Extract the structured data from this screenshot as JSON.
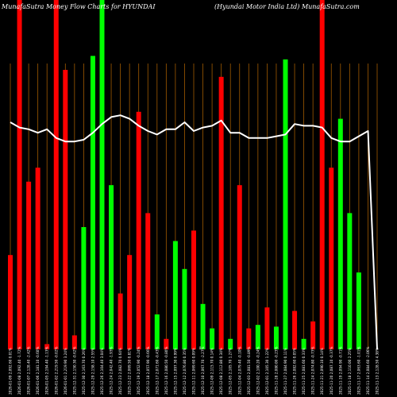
{
  "header": {
    "left": "MunafaSutra  Money Flow  Charts for HYUNDAI",
    "right": "(Hyundai  Motor India  Ltd) MunafaSutra.com"
  },
  "zero_label": "0",
  "colors": {
    "up": "#00ff00",
    "down": "#ff0000",
    "line": "#ffffff",
    "grid": "#a05a00",
    "background": "#000000"
  },
  "chart_data": {
    "type": "bar",
    "title": "MunafaSutra  Money Flow  Charts for HYUNDAI",
    "subtitle": "(Hyundai  Motor India  Ltd) MunafaSutra.com",
    "ylim": [
      0,
      100
    ],
    "grid": "vertical",
    "categories": [
      "2026-01-09 2,092.60 0.01%",
      "2026-01-08 2,092.40 -1.72%",
      "2026-01-07 2,128.40 -2.42%",
      "2026-01-06 2,181.10 -0.60%",
      "2026-01-05 2,194.40 -1.13%",
      "2026-01-02 2,219.50 -0.02%",
      "2026-01-01 2,219.90 3.24%",
      "2025-12-31 2,150.30 -0.62%",
      "2025-12-30 2,163.70 0.26%",
      "2025-12-29 2,158.10 2.55%",
      "2025-12-26 2,104.40 3.04%",
      "2025-12-24 2,042.40 -1.93%",
      "2025-12-23 2,082.70 0.64%",
      "2025-12-22 2,069.50 0.81%",
      "2025-12-19 2,052.90 -0.24%",
      "2025-12-18 2,057.90 -0.66%",
      "2025-12-17 2,071.60 -0.43%",
      "2025-12-16 2,080.50 -0.80%",
      "2025-12-15 2,097.30 0.99%",
      "2025-12-12 2,076.80 0.35%",
      "2025-12-11 2,069.60 0.09%",
      "2025-12-10 2,067.70 -2.27%",
      "2025-12-09 2,115.70 0.14%",
      "2025-12-08 2,112.80 0.34%",
      "2025-12-05 2,105.70 1.27%",
      "2025-12-04 2,079.40 -0.10%",
      "2025-12-03 2,081.50 -0.89%",
      "2025-12-02 2,100.20 -0.24%",
      "2025-12-01 2,105.30 1.22%",
      "2025-11-28 2,080.00 -0.23%",
      "2025-11-27 2,084.90 0.11%",
      "2025-11-26 2,082.60 0.05%",
      "2025-11-25 2,081.60 0.33%",
      "2025-11-24 2,074.80 -0.73%",
      "2025-11-21 2,090.10 0.14%",
      "2025-11-20 2,087.10 -0.37%",
      "2025-11-19 2,094.90 -0.71%",
      "2025-11-18 2,110.00 2.25%",
      "2025-11-17 2,063.60 -1.01%",
      "2025-11-14 2,084.60 -2.06%",
      "2025-11-13 2,128.50 4.38%"
    ],
    "series": [
      {
        "values": [
          27,
          100,
          48,
          52,
          1.5,
          100,
          80,
          4,
          35,
          84,
          100,
          47,
          16,
          27,
          68,
          39,
          10,
          3,
          31,
          23,
          34,
          13,
          6,
          78,
          3,
          47,
          6,
          7,
          12,
          6.5,
          83,
          11,
          3,
          8,
          100,
          52,
          66,
          39,
          22,
          0,
          0
        ],
        "colors": [
          "r",
          "r",
          "r",
          "r",
          "r",
          "r",
          "r",
          "r",
          "g",
          "g",
          "g",
          "g",
          "r",
          "r",
          "r",
          "r",
          "g",
          "r",
          "g",
          "g",
          "r",
          "g",
          "g",
          "r",
          "g",
          "r",
          "r",
          "g",
          "r",
          "g",
          "g",
          "r",
          "g",
          "r",
          "r",
          "r",
          "g",
          "g",
          "g",
          "",
          ""
        ]
      }
    ],
    "line": [
      65,
      63.5,
      63,
      62,
      63,
      60.5,
      59.5,
      59.5,
      60,
      62,
      64.5,
      66.5,
      67,
      66,
      64,
      62.5,
      61.5,
      63,
      63,
      65,
      62.5,
      63.5,
      64,
      65.5,
      62,
      62,
      60.5,
      60.5,
      60.5,
      61,
      61.5,
      64.5,
      64,
      64,
      63.5,
      60.5,
      59.5,
      59.5,
      61,
      62.5,
      0
    ]
  }
}
